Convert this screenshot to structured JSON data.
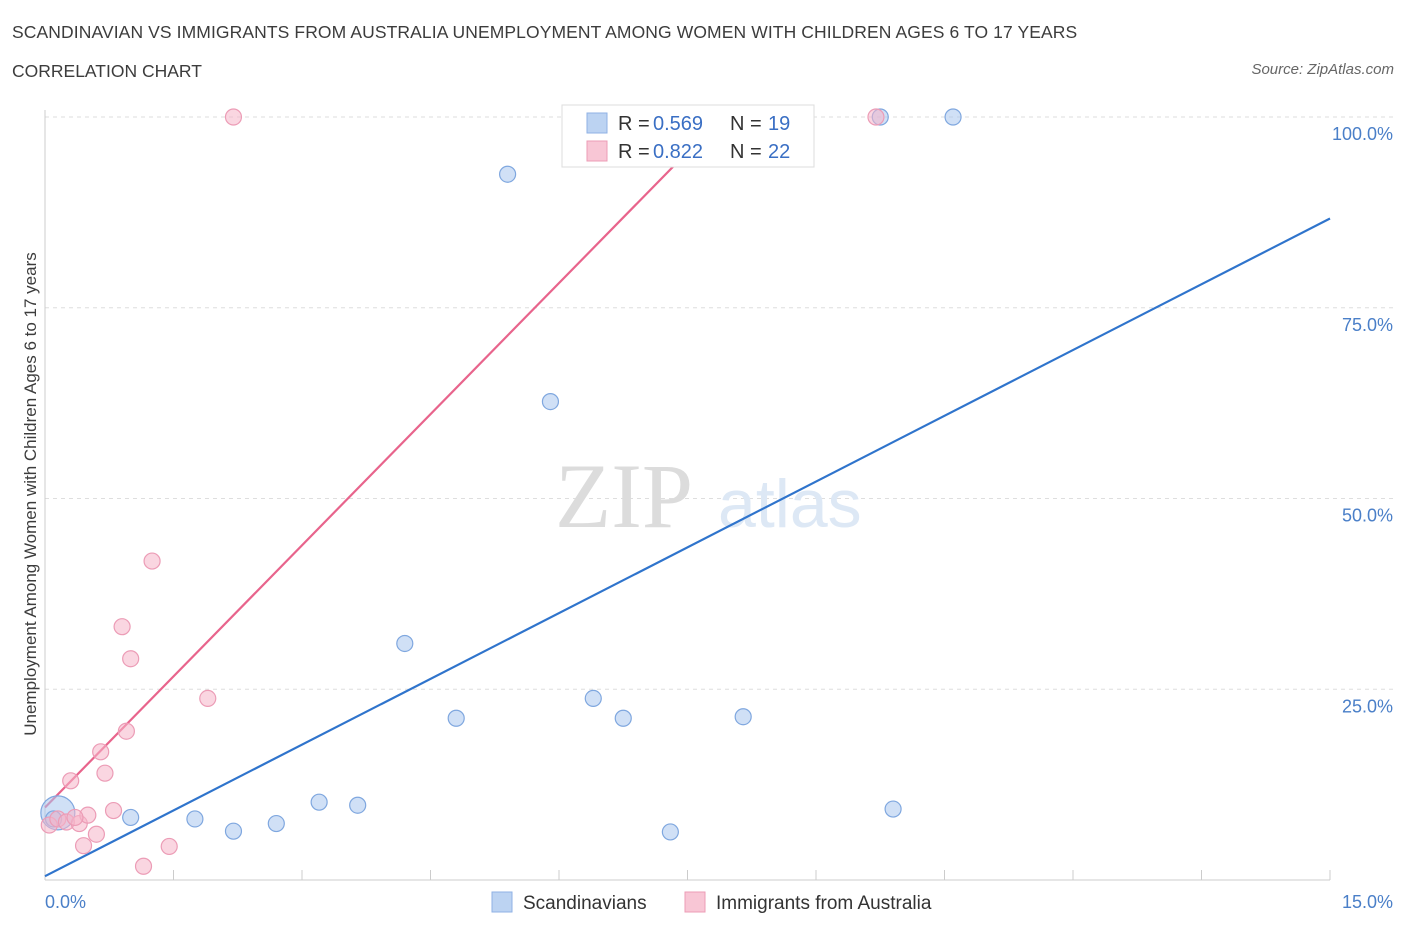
{
  "header": {
    "title": "SCANDINAVIAN VS IMMIGRANTS FROM AUSTRALIA UNEMPLOYMENT AMONG WOMEN WITH CHILDREN AGES 6 TO 17 YEARS",
    "subtitle": "CORRELATION CHART",
    "source": "Source: ZipAtlas.com"
  },
  "watermark": {
    "zip": "ZIP",
    "atlas": "atlas"
  },
  "legend": {
    "r_label": "R =",
    "n_label": "N =",
    "rows": [
      {
        "r": "0.569",
        "n": "19"
      },
      {
        "r": "0.822",
        "n": "22"
      }
    ]
  },
  "chart_data": {
    "type": "scatter",
    "ylabel": "Unemployment Among Women with Children Ages 6 to 17 years",
    "xlim": [
      0,
      15
    ],
    "ylim": [
      0,
      100
    ],
    "x_ticks": [
      "0.0%",
      "15.0%"
    ],
    "y_ticks": [
      {
        "value": 100,
        "label": "100.0%"
      },
      {
        "value": 75,
        "label": "75.0%"
      },
      {
        "value": 50,
        "label": "50.0%"
      },
      {
        "value": 25,
        "label": "25.0%"
      }
    ],
    "grid": true,
    "colors": {
      "scandinavian": "#a9c6ee",
      "scandinavian_line": "#2f74cc",
      "australia": "#f5b4c8",
      "australia_line": "#e8648c"
    },
    "series": [
      {
        "name": "Scandinavians",
        "points": [
          [
            0.15,
            8.8
          ],
          [
            1.0,
            8.2
          ],
          [
            1.75,
            8.0
          ],
          [
            2.2,
            6.4
          ],
          [
            2.7,
            7.4
          ],
          [
            3.2,
            10.2
          ],
          [
            3.65,
            9.8
          ],
          [
            4.2,
            31.0
          ],
          [
            4.8,
            21.2
          ],
          [
            5.4,
            92.5
          ],
          [
            5.9,
            62.7
          ],
          [
            6.4,
            23.8
          ],
          [
            6.75,
            21.2
          ],
          [
            7.3,
            6.3
          ],
          [
            8.15,
            21.4
          ],
          [
            9.9,
            9.3
          ],
          [
            9.75,
            100.0
          ],
          [
            10.6,
            100.0
          ],
          [
            0.1,
            8.0
          ]
        ],
        "trend": [
          [
            0.0,
            0.5
          ],
          [
            15.0,
            86.7
          ]
        ]
      },
      {
        "name": "Immigrants from Australia",
        "points": [
          [
            0.05,
            7.2
          ],
          [
            0.15,
            8.0
          ],
          [
            0.25,
            7.6
          ],
          [
            0.3,
            13.0
          ],
          [
            0.4,
            7.4
          ],
          [
            0.45,
            4.5
          ],
          [
            0.5,
            8.5
          ],
          [
            0.6,
            6.0
          ],
          [
            0.65,
            16.8
          ],
          [
            0.7,
            14.0
          ],
          [
            0.8,
            9.1
          ],
          [
            0.9,
            33.2
          ],
          [
            0.95,
            19.5
          ],
          [
            1.0,
            29.0
          ],
          [
            1.15,
            1.8
          ],
          [
            1.25,
            41.8
          ],
          [
            1.45,
            4.4
          ],
          [
            1.9,
            23.8
          ],
          [
            2.2,
            100.0
          ],
          [
            7.4,
            100.0
          ],
          [
            9.7,
            100.0
          ],
          [
            0.35,
            8.2
          ]
        ],
        "trend": [
          [
            0.0,
            9.5
          ],
          [
            7.9,
            100.0
          ]
        ]
      }
    ]
  }
}
